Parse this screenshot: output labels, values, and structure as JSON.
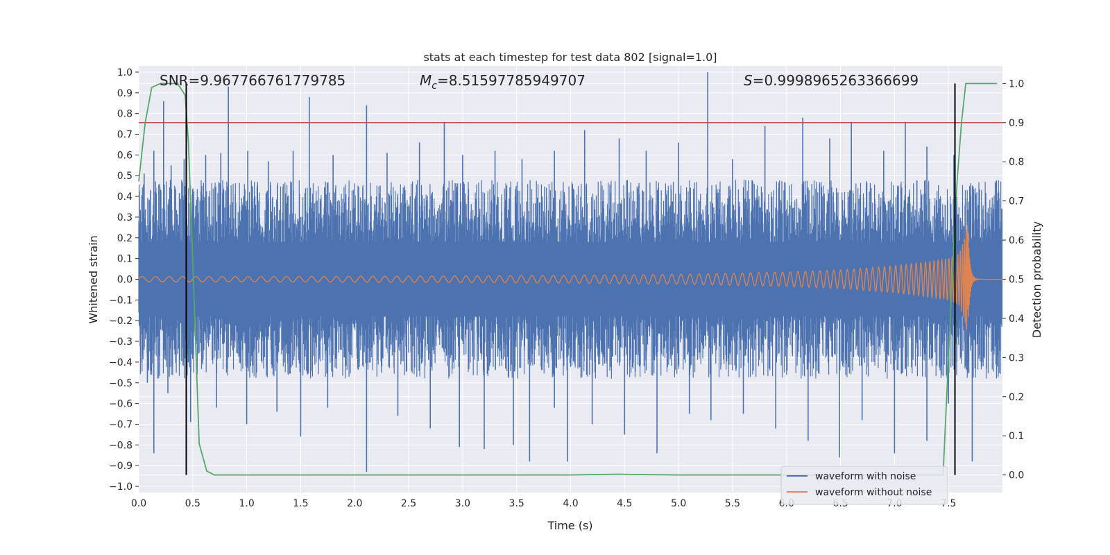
{
  "chart_data": {
    "type": "line",
    "title": "stats at each timestep for test data 802 [signal=1.0]",
    "xlabel": "Time (s)",
    "ylabel": "Whitened strain",
    "y2label": "Detection probability",
    "xlim": [
      0.0,
      8.0
    ],
    "ylim": [
      -1.03,
      1.03
    ],
    "y2lim": [
      -0.045,
      1.045
    ],
    "x_ticks": [
      "0.0",
      "0.5",
      "1.0",
      "1.5",
      "2.0",
      "2.5",
      "3.0",
      "3.5",
      "4.0",
      "4.5",
      "5.0",
      "5.5",
      "6.0",
      "6.5",
      "7.0",
      "7.5"
    ],
    "y_ticks": [
      "−1.0",
      "−0.9",
      "−0.8",
      "−0.7",
      "−0.6",
      "−0.5",
      "−0.4",
      "−0.3",
      "−0.2",
      "−0.1",
      "0.0",
      "0.1",
      "0.2",
      "0.3",
      "0.4",
      "0.5",
      "0.6",
      "0.7",
      "0.8",
      "0.9",
      "1.0"
    ],
    "y2_ticks": [
      "0.0",
      "0.1",
      "0.2",
      "0.3",
      "0.4",
      "0.5",
      "0.6",
      "0.7",
      "0.8",
      "0.9",
      "1.0"
    ],
    "grid": true,
    "legend_placement": "lower-right",
    "annotations": {
      "snr": "SNR=9.967766761779785",
      "mc_symbol": "M",
      "mc_sub": "c",
      "mc_value": "=8.51597785949707",
      "s_symbol": "S",
      "s_value": "=0.9998965263366699"
    },
    "threshold": {
      "axis": "y2",
      "value": 0.9,
      "color": "#c44e52"
    },
    "vlines": [
      0.44,
      7.56
    ],
    "series": [
      {
        "name": "waveform with noise",
        "color": "#4c72b0",
        "spikes_up": [
          [
            0.05,
            0.51
          ],
          [
            0.14,
            0.62
          ],
          [
            0.23,
            0.86
          ],
          [
            0.3,
            0.55
          ],
          [
            0.42,
            0.58
          ],
          [
            0.62,
            0.6
          ],
          [
            0.76,
            0.61
          ],
          [
            0.83,
            0.93
          ],
          [
            1.01,
            0.62
          ],
          [
            1.2,
            0.57
          ],
          [
            1.43,
            0.62
          ],
          [
            1.58,
            0.88
          ],
          [
            1.8,
            0.6
          ],
          [
            2.11,
            0.84
          ],
          [
            2.3,
            0.61
          ],
          [
            2.6,
            0.66
          ],
          [
            2.83,
            0.76
          ],
          [
            3.0,
            0.6
          ],
          [
            3.3,
            0.62
          ],
          [
            3.55,
            0.58
          ],
          [
            3.85,
            0.62
          ],
          [
            4.13,
            0.72
          ],
          [
            4.45,
            0.68
          ],
          [
            4.7,
            0.62
          ],
          [
            5.0,
            0.66
          ],
          [
            5.27,
            1.0
          ],
          [
            5.5,
            0.58
          ],
          [
            5.8,
            0.74
          ],
          [
            6.15,
            0.78
          ],
          [
            6.4,
            0.68
          ],
          [
            6.6,
            0.76
          ],
          [
            6.9,
            0.62
          ],
          [
            7.1,
            0.76
          ],
          [
            7.3,
            0.64
          ],
          [
            7.55,
            0.6
          ],
          [
            7.7,
            0.44
          ]
        ],
        "spikes_down": [
          [
            0.08,
            -0.5
          ],
          [
            0.14,
            -0.84
          ],
          [
            0.27,
            -0.55
          ],
          [
            0.48,
            -0.69
          ],
          [
            0.72,
            -0.62
          ],
          [
            1.0,
            -0.7
          ],
          [
            1.28,
            -0.64
          ],
          [
            1.5,
            -0.76
          ],
          [
            1.75,
            -0.62
          ],
          [
            2.11,
            -0.93
          ],
          [
            2.4,
            -0.66
          ],
          [
            2.7,
            -0.72
          ],
          [
            2.97,
            -0.81
          ],
          [
            3.2,
            -0.82
          ],
          [
            3.47,
            -0.8
          ],
          [
            3.62,
            -0.88
          ],
          [
            3.85,
            -0.62
          ],
          [
            3.97,
            -0.88
          ],
          [
            4.2,
            -0.7
          ],
          [
            4.5,
            -0.75
          ],
          [
            4.8,
            -0.84
          ],
          [
            5.1,
            -0.65
          ],
          [
            5.3,
            -0.68
          ],
          [
            5.6,
            -0.65
          ],
          [
            5.9,
            -0.72
          ],
          [
            6.2,
            -0.78
          ],
          [
            6.49,
            -0.86
          ],
          [
            6.7,
            -0.68
          ],
          [
            7.0,
            -0.84
          ],
          [
            7.3,
            -0.78
          ],
          [
            7.5,
            -0.6
          ],
          [
            7.72,
            -0.88
          ]
        ]
      },
      {
        "name": "waveform without noise",
        "color": "#dd8452",
        "envelope": [
          [
            0.0,
            0.013
          ],
          [
            1.0,
            0.013
          ],
          [
            2.0,
            0.014
          ],
          [
            3.0,
            0.016
          ],
          [
            4.0,
            0.019
          ],
          [
            5.0,
            0.024
          ],
          [
            6.0,
            0.035
          ],
          [
            6.5,
            0.045
          ],
          [
            7.0,
            0.065
          ],
          [
            7.3,
            0.085
          ],
          [
            7.5,
            0.1
          ],
          [
            7.6,
            0.125
          ],
          [
            7.65,
            0.2
          ],
          [
            7.68,
            0.28
          ]
        ],
        "merger_time": 7.68
      },
      {
        "name": "Detection probability",
        "axis": "y2",
        "color": "#55a868",
        "x": [
          0.0,
          0.06,
          0.12,
          0.2,
          0.3,
          0.36,
          0.43,
          0.46,
          0.5,
          0.56,
          0.63,
          0.7,
          0.8,
          1.0,
          2.0,
          3.0,
          4.0,
          4.45,
          4.6,
          5.0,
          6.0,
          7.0,
          7.45,
          7.5,
          7.55,
          7.58,
          7.62,
          7.66,
          7.95
        ],
        "y": [
          0.75,
          0.9,
          0.99,
          1.0,
          1.0,
          1.0,
          0.97,
          0.85,
          0.55,
          0.08,
          0.01,
          0.0,
          0.0,
          0.0,
          0.0,
          0.0,
          0.0,
          0.002,
          0.001,
          0.0,
          0.0,
          0.0,
          0.0,
          0.3,
          0.6,
          0.75,
          0.9,
          1.0,
          1.0
        ]
      }
    ]
  }
}
